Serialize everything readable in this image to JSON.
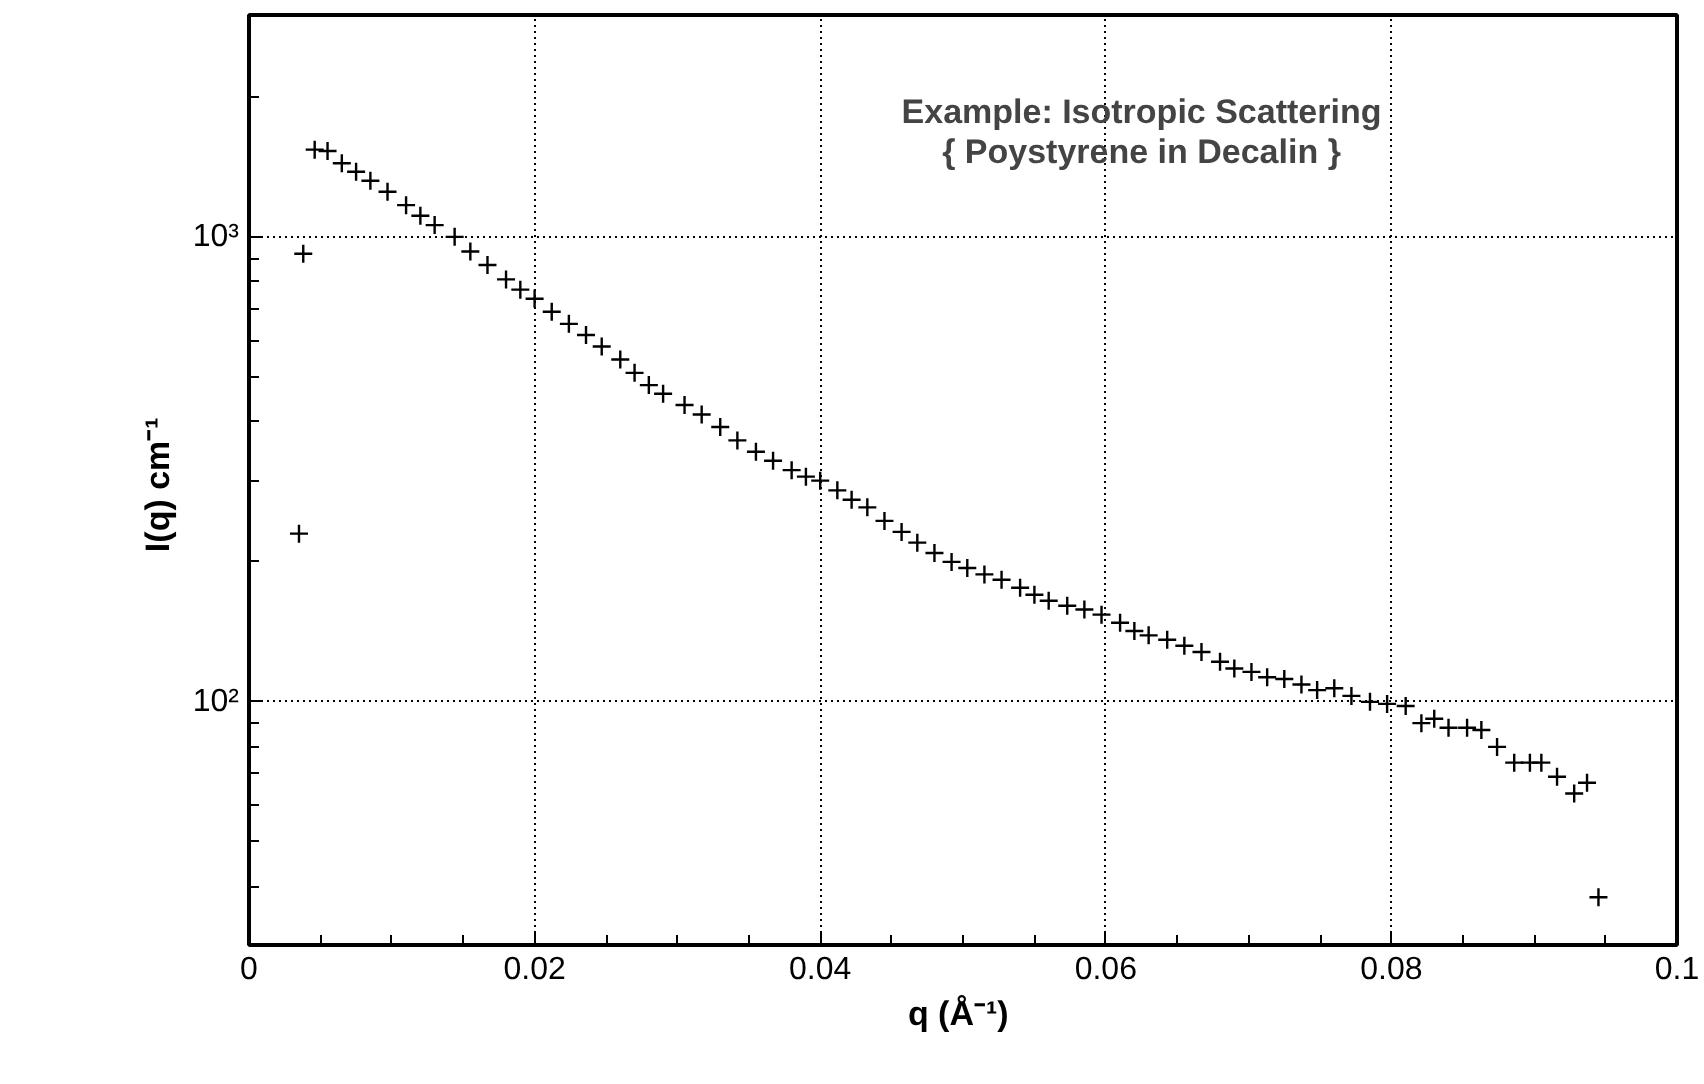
{
  "chart_data": {
    "type": "scatter",
    "title": "Example: Isotropic Scattering",
    "subtitle": "{ Poystyrene in Decalin }",
    "xlabel": "q  (Å⁻¹)",
    "ylabel": "I(q)  cm⁻¹",
    "x": [
      0.0035,
      0.0038,
      0.0046,
      0.0055,
      0.0065,
      0.0075,
      0.0085,
      0.0097,
      0.011,
      0.012,
      0.013,
      0.0144,
      0.0155,
      0.0167,
      0.018,
      0.019,
      0.02,
      0.0212,
      0.0224,
      0.0236,
      0.0247,
      0.026,
      0.027,
      0.028,
      0.029,
      0.0305,
      0.0317,
      0.033,
      0.0342,
      0.0355,
      0.0367,
      0.038,
      0.039,
      0.04,
      0.0412,
      0.0422,
      0.0433,
      0.0445,
      0.0457,
      0.0468,
      0.048,
      0.0492,
      0.0503,
      0.0515,
      0.0527,
      0.054,
      0.055,
      0.056,
      0.0573,
      0.0585,
      0.0597,
      0.061,
      0.062,
      0.063,
      0.0643,
      0.0655,
      0.0667,
      0.068,
      0.069,
      0.0702,
      0.0713,
      0.0725,
      0.0737,
      0.0748,
      0.076,
      0.0772,
      0.0785,
      0.0797,
      0.081,
      0.0821,
      0.083,
      0.084,
      0.0853,
      0.0863,
      0.0874,
      0.0886,
      0.0897,
      0.0905,
      0.0916,
      0.0928,
      0.0937,
      0.0945
    ],
    "series": [
      {
        "color": "#000000",
        "values": [
          230,
          920,
          1540,
          1530,
          1440,
          1380,
          1320,
          1250,
          1170,
          1110,
          1060,
          1000,
          930,
          870,
          810,
          770,
          736,
          690,
          650,
          615,
          581,
          545,
          510,
          480,
          460,
          435,
          415,
          390,
          365,
          345,
          330,
          315,
          305,
          299,
          285,
          272,
          262,
          245,
          232,
          220,
          209,
          200,
          194,
          188,
          183,
          176,
          170,
          165,
          161,
          158,
          154,
          148,
          142,
          139,
          136,
          132,
          128,
          122,
          118,
          116,
          113,
          112,
          109,
          106,
          107,
          103,
          100,
          99,
          98,
          90,
          92,
          88,
          88,
          87,
          80,
          74,
          74,
          74,
          69,
          63.5,
          67,
          38
        ]
      }
    ],
    "marker": "cross",
    "log": "y",
    "grid": true,
    "xlim": [
      0,
      0.1
    ],
    "xticks": [
      0,
      {
        "value": 0.005,
        "label": null
      },
      {
        "value": 0.01,
        "label": null
      },
      {
        "value": 0.015,
        "label": null
      },
      {
        "value": 0.02,
        "label": "0.02"
      },
      {
        "value": 0.025,
        "label": null
      },
      {
        "value": 0.03,
        "label": null
      },
      {
        "value": 0.035,
        "label": null
      },
      {
        "value": 0.04,
        "label": "0.04"
      },
      {
        "value": 0.045,
        "label": null
      },
      {
        "value": 0.05,
        "label": null
      },
      {
        "value": 0.055,
        "label": null
      },
      {
        "value": 0.06,
        "label": "0.06"
      },
      {
        "value": 0.065,
        "label": null
      },
      {
        "value": 0.07,
        "label": null
      },
      {
        "value": 0.075,
        "label": null
      },
      {
        "value": 0.08,
        "label": "0.08"
      },
      {
        "value": 0.085,
        "label": null
      },
      {
        "value": 0.09,
        "label": null
      },
      {
        "value": 0.095,
        "label": null
      },
      {
        "value": 0.1,
        "label": "0.1"
      }
    ],
    "ylim": [
      30,
      3000
    ],
    "yticks": [
      {
        "value": 40,
        "label": null
      },
      {
        "value": 50,
        "label": null
      },
      {
        "value": 60,
        "label": null
      },
      {
        "value": 70,
        "label": null
      },
      {
        "value": 80,
        "label": null
      },
      {
        "value": 90,
        "label": null
      },
      {
        "value": 100,
        "label": "10²"
      },
      {
        "value": 200,
        "label": null
      },
      {
        "value": 300,
        "label": null
      },
      {
        "value": 400,
        "label": null
      },
      {
        "value": 500,
        "label": null
      },
      {
        "value": 600,
        "label": null
      },
      {
        "value": 700,
        "label": null
      },
      {
        "value": 800,
        "label": null
      },
      {
        "value": 900,
        "label": null
      },
      {
        "value": 1000,
        "label": "10³"
      },
      {
        "value": 2000,
        "label": null
      }
    ]
  }
}
